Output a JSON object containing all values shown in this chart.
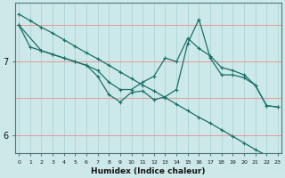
{
  "xlabel": "Humidex (Indice chaleur)",
  "bg_color": "#cce8e8",
  "line_color": "#1a7068",
  "vgrid_color": "#a8d0d0",
  "hgrid_color": "#e89898",
  "ylim": [
    5.75,
    7.8
  ],
  "xlim": [
    -0.3,
    23.3
  ],
  "series_straight": [
    7.65,
    7.56,
    7.47,
    7.39,
    7.3,
    7.21,
    7.12,
    7.04,
    6.95,
    6.86,
    6.77,
    6.68,
    6.6,
    6.51,
    6.42,
    6.33,
    6.24,
    6.16,
    6.07,
    5.98,
    5.89,
    5.8,
    5.72,
    5.63
  ],
  "series_line2": [
    7.5,
    7.2,
    7.15,
    7.1,
    7.05,
    7.0,
    6.95,
    6.88,
    6.72,
    6.62,
    6.62,
    6.72,
    6.8,
    7.05,
    7.0,
    7.32,
    7.18,
    7.08,
    6.92,
    6.88,
    6.82,
    6.68,
    6.4,
    6.38
  ],
  "series_line3": [
    7.5,
    null,
    7.15,
    7.1,
    7.05,
    7.0,
    6.95,
    6.8,
    6.55,
    6.45,
    6.58,
    6.6,
    6.48,
    6.52,
    6.62,
    7.25,
    7.58,
    7.05,
    6.82,
    6.82,
    6.78,
    6.68,
    6.4,
    6.38
  ]
}
